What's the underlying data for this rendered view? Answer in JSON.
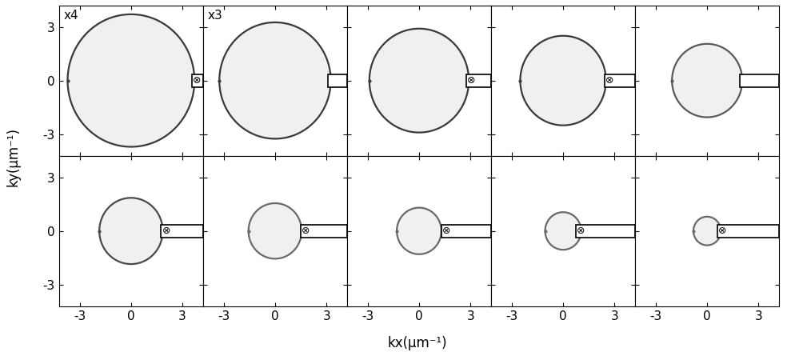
{
  "xlabel": "kx(μm⁻¹)",
  "ylabel": "ky(μm⁻¹)",
  "chart_data": [
    {
      "type": "ring",
      "ring_radius": 3.7,
      "mask_x": 3.55,
      "mask_ky": [
        -0.35,
        0.35
      ],
      "mask_symbol": "⊗",
      "scale_label": "x4",
      "color": "#3a3a3a",
      "xlim": [
        -4.2,
        4.2
      ],
      "ylim": [
        -4.2,
        4.2
      ],
      "xticks": [
        -3,
        0,
        3
      ],
      "yticks": [
        -3,
        0,
        3
      ],
      "tick_labels": "y"
    },
    {
      "type": "ring",
      "ring_radius": 3.25,
      "mask_x": 3.1,
      "mask_ky": [
        -0.35,
        0.35
      ],
      "mask_symbol": null,
      "scale_label": "x3",
      "color": "#3a3a3a",
      "xlim": [
        -4.2,
        4.2
      ],
      "ylim": [
        -4.2,
        4.2
      ],
      "xticks": [
        -3,
        0,
        3
      ],
      "yticks": [
        -3,
        0,
        3
      ],
      "tick_labels": false
    },
    {
      "type": "ring",
      "ring_radius": 2.9,
      "mask_x": 2.75,
      "mask_ky": [
        -0.35,
        0.35
      ],
      "mask_symbol": "⊗",
      "scale_label": null,
      "color": "#3a3a3a",
      "xlim": [
        -4.2,
        4.2
      ],
      "ylim": [
        -4.2,
        4.2
      ],
      "xticks": [
        -3,
        0,
        3
      ],
      "yticks": [
        -3,
        0,
        3
      ],
      "tick_labels": false
    },
    {
      "type": "ring",
      "ring_radius": 2.5,
      "mask_x": 2.4,
      "mask_ky": [
        -0.35,
        0.35
      ],
      "mask_symbol": "⊗",
      "scale_label": null,
      "color": "#3a3a3a",
      "xlim": [
        -4.2,
        4.2
      ],
      "ylim": [
        -4.2,
        4.2
      ],
      "xticks": [
        -3,
        0,
        3
      ],
      "yticks": [
        -3,
        0,
        3
      ],
      "tick_labels": false
    },
    {
      "type": "ring",
      "ring_radius": 2.05,
      "mask_x": 1.9,
      "mask_ky": [
        -0.35,
        0.35
      ],
      "mask_symbol": null,
      "scale_label": null,
      "color": "#5a5a5a",
      "xlim": [
        -4.2,
        4.2
      ],
      "ylim": [
        -4.2,
        4.2
      ],
      "xticks": [
        -3,
        0,
        3
      ],
      "yticks": [
        -3,
        0,
        3
      ],
      "tick_labels": false
    },
    {
      "type": "ring",
      "ring_radius": 1.85,
      "mask_x": 1.75,
      "mask_ky": [
        -0.35,
        0.35
      ],
      "mask_symbol": "⊗",
      "scale_label": null,
      "color": "#4a4a4a",
      "xlim": [
        -4.2,
        4.2
      ],
      "ylim": [
        -4.2,
        4.2
      ],
      "xticks": [
        -3,
        0,
        3
      ],
      "yticks": [
        -3,
        0,
        3
      ],
      "tick_labels": true
    },
    {
      "type": "ring",
      "ring_radius": 1.55,
      "mask_x": 1.5,
      "mask_ky": [
        -0.35,
        0.35
      ],
      "mask_symbol": "⊗",
      "scale_label": null,
      "color": "#6a6a6a",
      "xlim": [
        -4.2,
        4.2
      ],
      "ylim": [
        -4.2,
        4.2
      ],
      "xticks": [
        -3,
        0,
        3
      ],
      "yticks": [
        -3,
        0,
        3
      ],
      "tick_labels": "x"
    },
    {
      "type": "ring",
      "ring_radius": 1.3,
      "mask_x": 1.3,
      "mask_ky": [
        -0.35,
        0.35
      ],
      "mask_symbol": "⊗",
      "scale_label": null,
      "color": "#6a6a6a",
      "xlim": [
        -4.2,
        4.2
      ],
      "ylim": [
        -4.2,
        4.2
      ],
      "xticks": [
        -3,
        0,
        3
      ],
      "yticks": [
        -3,
        0,
        3
      ],
      "tick_labels": "x"
    },
    {
      "type": "ring",
      "ring_radius": 1.05,
      "mask_x": 0.75,
      "mask_ky": [
        -0.35,
        0.35
      ],
      "mask_symbol": "⊗",
      "scale_label": null,
      "color": "#6a6a6a",
      "xlim": [
        -4.2,
        4.2
      ],
      "ylim": [
        -4.2,
        4.2
      ],
      "xticks": [
        -3,
        0,
        3
      ],
      "yticks": [
        -3,
        0,
        3
      ],
      "tick_labels": "x"
    },
    {
      "type": "ring",
      "ring_radius": 0.8,
      "mask_x": 0.6,
      "mask_ky": [
        -0.35,
        0.35
      ],
      "mask_symbol": "⊗",
      "scale_label": null,
      "color": "#6a6a6a",
      "xlim": [
        -4.2,
        4.2
      ],
      "ylim": [
        -4.2,
        4.2
      ],
      "xticks": [
        -3,
        0,
        3
      ],
      "yticks": [
        -3,
        0,
        3
      ],
      "tick_labels": "x"
    }
  ]
}
